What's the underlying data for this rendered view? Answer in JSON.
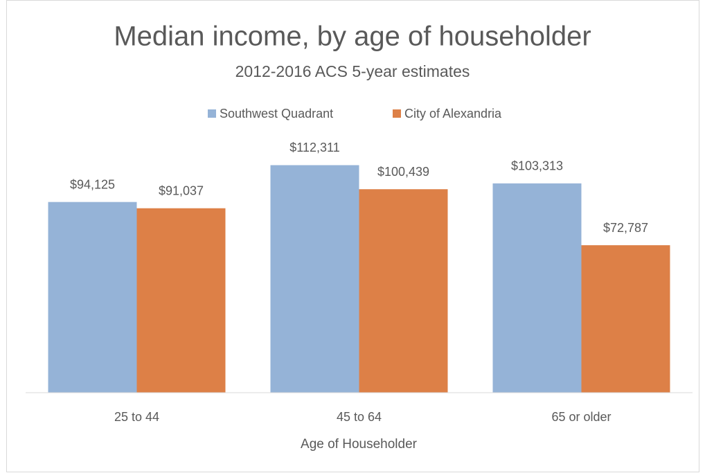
{
  "chart_data": {
    "type": "bar",
    "title": "Median income, by age of householder",
    "subtitle": "2012-2016 ACS 5-year estimates",
    "x_label": "Age of Householder",
    "categories": [
      "25 to 44",
      "45 to 64",
      "65 or older"
    ],
    "series": [
      {
        "name": "Southwest Quadrant",
        "color": "#95b3d7",
        "values": [
          94125,
          112311,
          103313
        ],
        "value_labels": [
          "$94,125",
          "$112,311",
          "$103,313"
        ]
      },
      {
        "name": "City of Alexandria",
        "color": "#dd8047",
        "values": [
          91037,
          100439,
          72787
        ],
        "value_labels": [
          "$91,037",
          "$100,439",
          "$72,787"
        ]
      }
    ],
    "ylim": [
      0,
      120000
    ],
    "legend": "top"
  }
}
